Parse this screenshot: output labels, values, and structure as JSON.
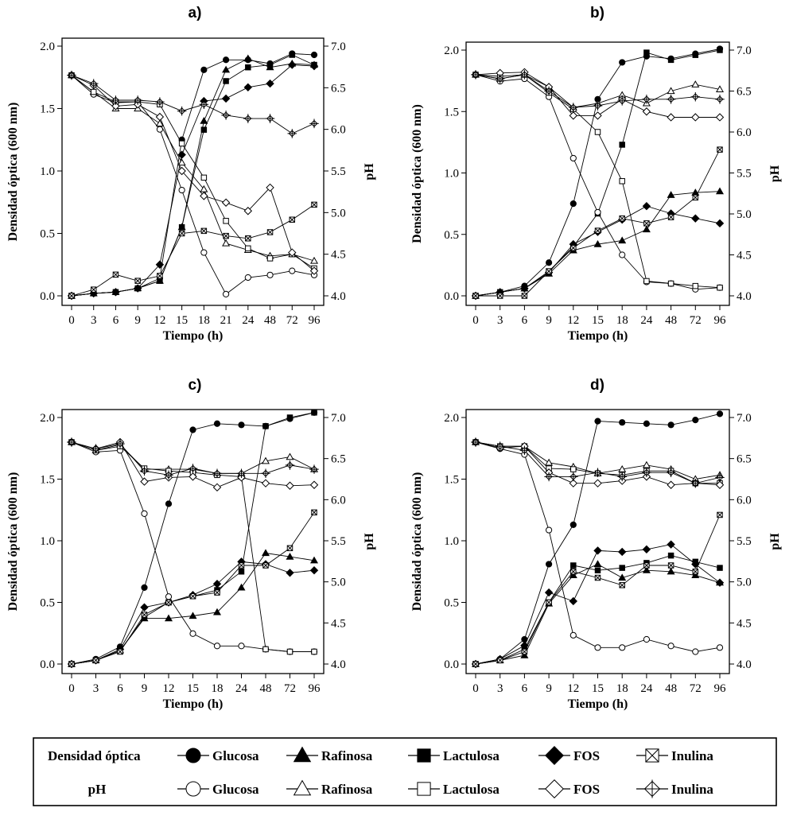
{
  "legend": {
    "row_labels": [
      "Densidad óptica",
      "pH"
    ],
    "entries": [
      "Glucosa",
      "Rafinosa",
      "Lactulosa",
      "FOS",
      "Inulina"
    ]
  },
  "chart_data": [
    {
      "type": "line",
      "title": "a)",
      "xlabel": "Tiempo (h)",
      "ylabel": "Densidad óptica (600 nm)",
      "y2label": "pH",
      "categories": [
        "0",
        "3",
        "6",
        "9",
        "12",
        "15",
        "18",
        "21",
        "24",
        "48",
        "72",
        "96"
      ],
      "ylim": [
        0,
        2.0
      ],
      "yticks": [
        "0.0",
        "0.5",
        "1.0",
        "1.5",
        "2.0"
      ],
      "y2lim": [
        4.0,
        7.0
      ],
      "y2ticks": [
        "4.0",
        "4.5",
        "5.0",
        "5.5",
        "6.0",
        "6.5",
        "7.0"
      ],
      "series": [
        {
          "name": "Glucosa",
          "measure": "Densidad óptica",
          "axis": "left",
          "marker": "circle",
          "filled": true,
          "values": [
            0.0,
            0.02,
            0.03,
            0.06,
            0.14,
            1.25,
            1.81,
            1.89,
            1.89,
            1.86,
            1.94,
            1.93
          ]
        },
        {
          "name": "Rafinosa",
          "measure": "Densidad óptica",
          "axis": "left",
          "marker": "triangle",
          "filled": true,
          "values": [
            0.0,
            0.02,
            0.03,
            0.06,
            0.12,
            0.55,
            1.4,
            1.81,
            1.9,
            1.83,
            1.86,
            1.85
          ]
        },
        {
          "name": "Lactulosa",
          "measure": "Densidad óptica",
          "axis": "left",
          "marker": "square",
          "filled": true,
          "values": [
            0.0,
            0.02,
            0.03,
            0.06,
            0.12,
            0.55,
            1.33,
            1.72,
            1.83,
            1.85,
            1.93,
            1.85
          ]
        },
        {
          "name": "FOS",
          "measure": "Densidad óptica",
          "axis": "left",
          "marker": "diamond",
          "filled": true,
          "values": [
            0.0,
            0.02,
            0.03,
            0.06,
            0.25,
            1.13,
            1.56,
            1.58,
            1.67,
            1.7,
            1.85,
            1.84
          ]
        },
        {
          "name": "Inulina",
          "measure": "Densidad óptica",
          "axis": "left",
          "marker": "xbox",
          "filled": false,
          "values": [
            0.0,
            0.05,
            0.17,
            0.12,
            0.16,
            0.5,
            0.52,
            0.48,
            0.46,
            0.51,
            0.61,
            0.73
          ]
        },
        {
          "name": "Glucosa",
          "measure": "pH",
          "axis": "right",
          "marker": "circle",
          "filled": false,
          "values": [
            6.65,
            6.42,
            6.32,
            6.33,
            6.0,
            5.27,
            4.52,
            4.02,
            4.22,
            4.25,
            4.3,
            4.25
          ]
        },
        {
          "name": "Rafinosa",
          "measure": "pH",
          "axis": "right",
          "marker": "triangle",
          "filled": false,
          "values": [
            6.65,
            6.45,
            6.25,
            6.25,
            6.07,
            5.6,
            5.28,
            4.63,
            4.55,
            4.48,
            4.5,
            4.42
          ]
        },
        {
          "name": "Lactulosa",
          "measure": "pH",
          "axis": "right",
          "marker": "square",
          "filled": false,
          "values": [
            6.65,
            6.45,
            6.33,
            6.33,
            6.3,
            5.83,
            5.42,
            4.9,
            4.57,
            4.45,
            4.5,
            4.33
          ]
        },
        {
          "name": "FOS",
          "measure": "pH",
          "axis": "right",
          "marker": "diamond",
          "filled": false,
          "values": [
            6.65,
            6.53,
            6.28,
            6.3,
            6.15,
            5.5,
            5.2,
            5.12,
            5.02,
            5.3,
            4.52,
            4.3
          ]
        },
        {
          "name": "Inulina",
          "measure": "pH",
          "axis": "right",
          "marker": "plusbox",
          "filled": false,
          "values": [
            6.65,
            6.55,
            6.35,
            6.35,
            6.33,
            6.22,
            6.3,
            6.17,
            6.13,
            6.13,
            5.95,
            6.07
          ]
        }
      ]
    },
    {
      "type": "line",
      "title": "b)",
      "xlabel": "Tiempo (h)",
      "ylabel": "Densidad óptica (600 nm)",
      "y2label": "pH",
      "categories": [
        "0",
        "3",
        "6",
        "9",
        "12",
        "15",
        "18",
        "24",
        "48",
        "72",
        "96"
      ],
      "ylim": [
        0,
        2.0
      ],
      "yticks": [
        "0.0",
        "0.5",
        "1.0",
        "1.5",
        "2.0"
      ],
      "y2lim": [
        4.0,
        7.0
      ],
      "y2ticks": [
        "4.0",
        "4.5",
        "5.0",
        "5.5",
        "6.0",
        "6.5",
        "7.0"
      ],
      "series": [
        {
          "name": "Glucosa",
          "measure": "Densidad óptica",
          "axis": "left",
          "marker": "circle",
          "filled": true,
          "values": [
            0.0,
            0.03,
            0.08,
            0.27,
            0.75,
            1.6,
            1.9,
            1.95,
            1.93,
            1.97,
            2.01
          ]
        },
        {
          "name": "Rafinosa",
          "measure": "Densidad óptica",
          "axis": "left",
          "marker": "triangle",
          "filled": true,
          "values": [
            0.0,
            0.03,
            0.06,
            0.18,
            0.37,
            0.42,
            0.45,
            0.54,
            0.82,
            0.84,
            0.85
          ]
        },
        {
          "name": "Lactulosa",
          "measure": "Densidad óptica",
          "axis": "left",
          "marker": "square",
          "filled": true,
          "values": [
            0.0,
            0.03,
            0.06,
            0.2,
            0.4,
            0.67,
            1.23,
            1.98,
            1.92,
            1.96,
            2.0
          ]
        },
        {
          "name": "FOS",
          "measure": "Densidad óptica",
          "axis": "left",
          "marker": "diamond",
          "filled": true,
          "values": [
            0.0,
            0.03,
            0.06,
            0.19,
            0.42,
            0.52,
            0.62,
            0.73,
            0.67,
            0.63,
            0.59
          ]
        },
        {
          "name": "Inulina",
          "measure": "Densidad óptica",
          "axis": "left",
          "marker": "xbox",
          "filled": false,
          "values": [
            0.0,
            0.0,
            0.0,
            0.2,
            0.39,
            0.53,
            0.63,
            0.59,
            0.64,
            0.8,
            1.19
          ]
        },
        {
          "name": "Glucosa",
          "measure": "pH",
          "axis": "right",
          "marker": "circle",
          "filled": false,
          "values": [
            6.7,
            6.62,
            6.65,
            6.43,
            5.68,
            5.02,
            4.5,
            4.17,
            4.15,
            4.08,
            4.1
          ]
        },
        {
          "name": "Rafinosa",
          "measure": "pH",
          "axis": "right",
          "marker": "triangle",
          "filled": false,
          "values": [
            6.7,
            6.65,
            6.7,
            6.55,
            6.3,
            6.35,
            6.45,
            6.35,
            6.5,
            6.58,
            6.52
          ]
        },
        {
          "name": "Lactulosa",
          "measure": "pH",
          "axis": "right",
          "marker": "square",
          "filled": false,
          "values": [
            6.7,
            6.68,
            6.7,
            6.48,
            6.28,
            6.0,
            5.4,
            4.18,
            4.15,
            4.12,
            4.1
          ]
        },
        {
          "name": "FOS",
          "measure": "pH",
          "axis": "right",
          "marker": "diamond",
          "filled": false,
          "values": [
            6.7,
            6.72,
            6.73,
            6.55,
            6.2,
            6.2,
            6.4,
            6.25,
            6.18,
            6.18,
            6.18
          ]
        },
        {
          "name": "Inulina",
          "measure": "pH",
          "axis": "right",
          "marker": "plusbox",
          "filled": false,
          "values": [
            6.7,
            6.65,
            6.7,
            6.5,
            6.3,
            6.32,
            6.38,
            6.4,
            6.4,
            6.43,
            6.4
          ]
        }
      ]
    },
    {
      "type": "line",
      "title": "c)",
      "xlabel": "Tiempo (h)",
      "ylabel": "Densidad óptica (600 nm)",
      "y2label": "pH",
      "categories": [
        "0",
        "3",
        "6",
        "9",
        "12",
        "15",
        "18",
        "24",
        "48",
        "72",
        "96"
      ],
      "ylim": [
        0,
        2.0
      ],
      "yticks": [
        "0.0",
        "0.5",
        "1.0",
        "1.5",
        "2.0"
      ],
      "y2lim": [
        4.0,
        7.0
      ],
      "y2ticks": [
        "4.0",
        "4.5",
        "5.0",
        "5.5",
        "6.0",
        "6.5",
        "7.0"
      ],
      "series": [
        {
          "name": "Glucosa",
          "measure": "Densidad óptica",
          "axis": "left",
          "marker": "circle",
          "filled": true,
          "values": [
            0.0,
            0.04,
            0.14,
            0.62,
            1.3,
            1.9,
            1.95,
            1.94,
            1.93,
            1.99,
            2.04
          ]
        },
        {
          "name": "Rafinosa",
          "measure": "Densidad óptica",
          "axis": "left",
          "marker": "triangle",
          "filled": true,
          "values": [
            0.0,
            0.03,
            0.11,
            0.37,
            0.37,
            0.39,
            0.42,
            0.62,
            0.9,
            0.87,
            0.84
          ]
        },
        {
          "name": "Lactulosa",
          "measure": "Densidad óptica",
          "axis": "left",
          "marker": "square",
          "filled": true,
          "values": [
            0.0,
            0.03,
            0.11,
            0.38,
            0.5,
            0.55,
            0.6,
            0.75,
            1.93,
            2.0,
            2.04
          ]
        },
        {
          "name": "FOS",
          "measure": "Densidad óptica",
          "axis": "left",
          "marker": "diamond",
          "filled": true,
          "values": [
            0.0,
            0.03,
            0.12,
            0.46,
            0.5,
            0.56,
            0.65,
            0.83,
            0.81,
            0.74,
            0.76
          ]
        },
        {
          "name": "Inulina",
          "measure": "Densidad óptica",
          "axis": "left",
          "marker": "xbox",
          "filled": false,
          "values": [
            0.0,
            0.03,
            0.1,
            0.4,
            0.5,
            0.55,
            0.58,
            0.8,
            0.8,
            0.94,
            1.23
          ]
        },
        {
          "name": "Glucosa",
          "measure": "pH",
          "axis": "right",
          "marker": "circle",
          "filled": false,
          "values": [
            6.7,
            6.58,
            6.6,
            5.83,
            4.82,
            4.37,
            4.22,
            4.22,
            4.18,
            4.15,
            4.15
          ]
        },
        {
          "name": "Rafinosa",
          "measure": "pH",
          "axis": "right",
          "marker": "triangle",
          "filled": false,
          "values": [
            6.7,
            6.6,
            6.67,
            6.37,
            6.37,
            6.37,
            6.32,
            6.32,
            6.47,
            6.52,
            6.37
          ]
        },
        {
          "name": "Lactulosa",
          "measure": "pH",
          "axis": "right",
          "marker": "square",
          "filled": false,
          "values": [
            6.7,
            6.6,
            6.65,
            6.38,
            6.35,
            6.33,
            6.3,
            6.28,
            4.18,
            4.15,
            4.15
          ]
        },
        {
          "name": "FOS",
          "measure": "pH",
          "axis": "right",
          "marker": "diamond",
          "filled": false,
          "values": [
            6.7,
            6.62,
            6.7,
            6.22,
            6.27,
            6.28,
            6.15,
            6.27,
            6.2,
            6.17,
            6.18
          ]
        },
        {
          "name": "Inulina",
          "measure": "pH",
          "axis": "right",
          "marker": "plusbox",
          "filled": false,
          "values": [
            6.7,
            6.62,
            6.68,
            6.35,
            6.3,
            6.38,
            6.32,
            6.32,
            6.32,
            6.42,
            6.37
          ]
        }
      ]
    },
    {
      "type": "line",
      "title": "d)",
      "xlabel": "Tiempo (h)",
      "ylabel": "Densidad óptica (600 nm)",
      "y2label": "pH",
      "categories": [
        "0",
        "3",
        "6",
        "9",
        "12",
        "15",
        "18",
        "24",
        "48",
        "72",
        "96"
      ],
      "ylim": [
        0,
        2.0
      ],
      "yticks": [
        "0.0",
        "0.5",
        "1.0",
        "1.5",
        "2.0"
      ],
      "y2lim": [
        4.0,
        7.0
      ],
      "y2ticks": [
        "4.0",
        "4.5",
        "5.0",
        "5.5",
        "6.0",
        "6.5",
        "7.0"
      ],
      "series": [
        {
          "name": "Glucosa",
          "measure": "Densidad óptica",
          "axis": "left",
          "marker": "circle",
          "filled": true,
          "values": [
            0.0,
            0.04,
            0.2,
            0.81,
            1.13,
            1.97,
            1.96,
            1.95,
            1.94,
            1.98,
            2.03
          ]
        },
        {
          "name": "Rafinosa",
          "measure": "Densidad óptica",
          "axis": "left",
          "marker": "triangle",
          "filled": true,
          "values": [
            0.0,
            0.03,
            0.07,
            0.49,
            0.72,
            0.81,
            0.7,
            0.76,
            0.75,
            0.72,
            0.66
          ]
        },
        {
          "name": "Lactulosa",
          "measure": "Densidad óptica",
          "axis": "left",
          "marker": "square",
          "filled": true,
          "values": [
            0.0,
            0.03,
            0.12,
            0.5,
            0.8,
            0.76,
            0.78,
            0.82,
            0.88,
            0.83,
            0.78
          ]
        },
        {
          "name": "FOS",
          "measure": "Densidad óptica",
          "axis": "left",
          "marker": "diamond",
          "filled": true,
          "values": [
            0.0,
            0.04,
            0.15,
            0.58,
            0.51,
            0.92,
            0.91,
            0.93,
            0.97,
            0.81,
            0.66
          ]
        },
        {
          "name": "Inulina",
          "measure": "Densidad óptica",
          "axis": "left",
          "marker": "xbox",
          "filled": false,
          "values": [
            0.0,
            0.03,
            0.1,
            0.5,
            0.75,
            0.7,
            0.64,
            0.8,
            0.8,
            0.75,
            1.21
          ]
        },
        {
          "name": "Glucosa",
          "measure": "pH",
          "axis": "right",
          "marker": "circle",
          "filled": false,
          "values": [
            6.7,
            6.62,
            6.55,
            5.63,
            4.35,
            4.2,
            4.2,
            4.3,
            4.22,
            4.15,
            4.2
          ]
        },
        {
          "name": "Rafinosa",
          "measure": "pH",
          "axis": "right",
          "marker": "triangle",
          "filled": false,
          "values": [
            6.7,
            6.65,
            6.65,
            6.45,
            6.4,
            6.32,
            6.37,
            6.42,
            6.37,
            6.25,
            6.3
          ]
        },
        {
          "name": "Lactulosa",
          "measure": "pH",
          "axis": "right",
          "marker": "square",
          "filled": false,
          "values": [
            6.7,
            6.65,
            6.65,
            6.38,
            6.37,
            6.32,
            6.3,
            6.35,
            6.35,
            6.2,
            6.2
          ]
        },
        {
          "name": "FOS",
          "measure": "pH",
          "axis": "right",
          "marker": "diamond",
          "filled": false,
          "values": [
            6.7,
            6.63,
            6.65,
            6.33,
            6.2,
            6.2,
            6.23,
            6.28,
            6.18,
            6.2,
            6.18
          ]
        },
        {
          "name": "Inulina",
          "measure": "pH",
          "axis": "right",
          "marker": "plusbox",
          "filled": false,
          "values": [
            6.7,
            6.65,
            6.6,
            6.28,
            6.28,
            6.33,
            6.28,
            6.33,
            6.33,
            6.2,
            6.27
          ]
        }
      ]
    }
  ]
}
